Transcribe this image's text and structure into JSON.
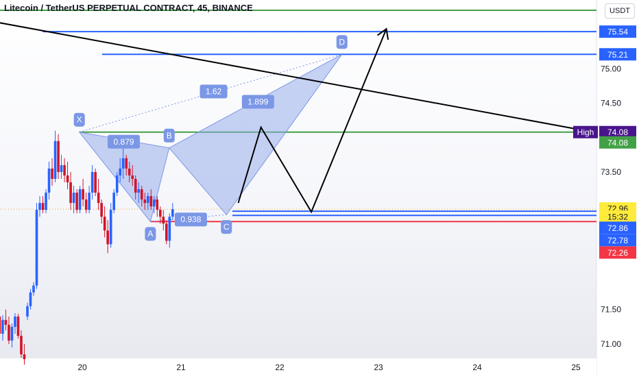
{
  "header": {
    "title": "Litecoin / TetherUS PERPETUAL CONTRACT, 45, BINANCE",
    "currency_button": "USDT"
  },
  "colors": {
    "pattern_fill": "#8fa8ea",
    "pattern_point": "#7b97e6",
    "blue_line": "#2962ff",
    "green_line": "#43a047",
    "red_line": "#f23645",
    "candle_up": "#2962ff",
    "candle_down": "#d1142a",
    "high_badge": "#4a148c",
    "price_badge": "#ffeb3b"
  },
  "chart_data": {
    "type": "candlestick",
    "symbol": "Litecoin / TetherUS PERPETUAL CONTRACT",
    "interval": "45",
    "exchange": "BINANCE",
    "x_ticks": [
      "20",
      "21",
      "22",
      "23",
      "24",
      "25"
    ],
    "y_ticks": [
      "75.00",
      "74.50",
      "73.50",
      "71.50",
      "71.00"
    ],
    "ylim": [
      70.8,
      75.9
    ],
    "candle_x_start": 19.1,
    "candle_x_step": 0.0313,
    "candles": [
      [
        71.35,
        71.45,
        71.25,
        71.3
      ],
      [
        71.3,
        71.48,
        71.22,
        71.4
      ],
      [
        71.4,
        71.46,
        71.1,
        71.15
      ],
      [
        71.15,
        71.42,
        71.05,
        71.35
      ],
      [
        71.35,
        71.5,
        71.2,
        71.28
      ],
      [
        71.28,
        71.4,
        71.0,
        71.05
      ],
      [
        71.05,
        71.3,
        70.95,
        71.25
      ],
      [
        71.25,
        71.45,
        71.15,
        71.4
      ],
      [
        71.4,
        71.44,
        71.08,
        71.12
      ],
      [
        71.12,
        71.2,
        70.8,
        70.85
      ],
      [
        70.85,
        71.0,
        70.7,
        70.78
      ],
      [
        71.4,
        71.6,
        71.35,
        71.55
      ],
      [
        71.55,
        71.8,
        71.5,
        71.75
      ],
      [
        71.75,
        71.9,
        71.7,
        71.85
      ],
      [
        71.85,
        73.05,
        71.8,
        72.95
      ],
      [
        72.95,
        73.15,
        72.85,
        73.05
      ],
      [
        73.05,
        73.15,
        72.9,
        72.95
      ],
      [
        72.95,
        73.25,
        72.9,
        73.2
      ],
      [
        73.2,
        73.65,
        73.1,
        73.55
      ],
      [
        73.55,
        73.7,
        73.3,
        73.4
      ],
      [
        73.4,
        74.1,
        73.35,
        73.95
      ],
      [
        73.95,
        74.05,
        73.4,
        73.5
      ],
      [
        73.5,
        73.75,
        73.4,
        73.6
      ],
      [
        73.6,
        73.7,
        73.35,
        73.45
      ],
      [
        73.45,
        73.65,
        73.25,
        73.35
      ],
      [
        73.35,
        73.5,
        72.95,
        73.05
      ],
      [
        73.05,
        73.3,
        72.9,
        73.2
      ],
      [
        73.2,
        73.25,
        72.9,
        72.95
      ],
      [
        72.95,
        73.3,
        72.9,
        73.25
      ],
      [
        73.25,
        73.4,
        73.0,
        73.1
      ],
      [
        73.1,
        73.2,
        72.9,
        72.95
      ],
      [
        72.95,
        73.3,
        72.9,
        73.2
      ],
      [
        73.2,
        73.6,
        73.1,
        73.5
      ],
      [
        73.5,
        73.55,
        73.15,
        73.2
      ],
      [
        73.2,
        73.4,
        72.95,
        73.05
      ],
      [
        73.05,
        73.1,
        72.75,
        72.85
      ],
      [
        72.85,
        73.0,
        72.55,
        72.65
      ],
      [
        72.65,
        72.8,
        72.32,
        72.45
      ],
      [
        72.45,
        73.05,
        72.4,
        72.95
      ],
      [
        72.95,
        73.25,
        72.9,
        73.2
      ],
      [
        73.2,
        73.5,
        73.15,
        73.45
      ],
      [
        73.45,
        73.7,
        73.35,
        73.55
      ],
      [
        73.55,
        73.85,
        73.4,
        73.7
      ],
      [
        73.7,
        73.75,
        73.45,
        73.55
      ],
      [
        73.55,
        73.65,
        73.35,
        73.45
      ],
      [
        73.45,
        73.6,
        73.3,
        73.4
      ],
      [
        73.4,
        73.45,
        73.1,
        73.2
      ],
      [
        73.2,
        73.35,
        73.05,
        73.25
      ],
      [
        73.25,
        73.3,
        73.0,
        73.1
      ],
      [
        73.1,
        73.2,
        72.95,
        73.05
      ],
      [
        73.05,
        73.2,
        72.95,
        73.15
      ],
      [
        73.15,
        73.25,
        72.95,
        73.0
      ],
      [
        73.0,
        73.15,
        72.9,
        73.1
      ],
      [
        73.1,
        73.15,
        72.85,
        72.95
      ],
      [
        72.95,
        73.0,
        72.75,
        72.85
      ],
      [
        72.85,
        72.95,
        72.65,
        72.75
      ],
      [
        72.75,
        72.8,
        72.45,
        72.5
      ],
      [
        72.5,
        72.9,
        72.4,
        72.85
      ],
      [
        72.85,
        73.05,
        72.8,
        72.96
      ]
    ],
    "harmonic_pattern": {
      "type": "butterfly",
      "points": [
        {
          "label": "X",
          "x": 19.97,
          "y": 74.08
        },
        {
          "label": "A",
          "x": 20.69,
          "y": 72.78
        },
        {
          "label": "B",
          "x": 20.88,
          "y": 73.85
        },
        {
          "label": "C",
          "x": 21.46,
          "y": 72.88
        },
        {
          "label": "D",
          "x": 22.63,
          "y": 75.21
        }
      ],
      "ratios": [
        {
          "label": "0.879",
          "x": 20.42,
          "y": 73.94
        },
        {
          "label": "0.938",
          "x": 21.1,
          "y": 72.81
        },
        {
          "label": "1.62",
          "x": 21.33,
          "y": 74.67
        },
        {
          "label": "1.899",
          "x": 21.78,
          "y": 74.52
        }
      ]
    },
    "projection_path": [
      {
        "x": 21.58,
        "y": 73.05
      },
      {
        "x": 21.81,
        "y": 74.15
      },
      {
        "x": 22.32,
        "y": 72.92
      },
      {
        "x": 23.08,
        "y": 75.58
      }
    ],
    "trendline": [
      {
        "x": 19.12,
        "y": 75.68
      },
      {
        "x": 25.1,
        "y": 74.1
      }
    ],
    "horizontal_lines": [
      {
        "name": "blue-line-75.54",
        "y": 75.54,
        "x_start": 19.6,
        "x_end": 25.3,
        "color": "#2962ff"
      },
      {
        "name": "blue-line-75.21",
        "y": 75.21,
        "x_start": 20.2,
        "x_end": 25.3,
        "color": "#2962ff"
      },
      {
        "name": "green-line-74.08",
        "y": 74.08,
        "x_start": 19.97,
        "x_end": 25.3,
        "color": "#43a047"
      },
      {
        "name": "blue-line-72.93",
        "y": 72.93,
        "x_start": 21.52,
        "x_end": 25.3,
        "color": "#2962ff"
      },
      {
        "name": "blue-line-72.87",
        "y": 72.87,
        "x_start": 21.52,
        "x_end": 25.3,
        "color": "#2962ff"
      },
      {
        "name": "red-line-72.78",
        "y": 72.78,
        "x_start": 20.69,
        "x_end": 25.3,
        "color": "#f23645"
      },
      {
        "name": "green-line-top",
        "y": 75.85,
        "x_start": 19.1,
        "x_end": 25.3,
        "color": "#43a047"
      }
    ],
    "price_labels": [
      {
        "text": "75.54",
        "y": 75.54,
        "bg": "#2962ff",
        "fg": "#ffffff"
      },
      {
        "text": "75.21",
        "y": 75.21,
        "bg": "#2962ff",
        "fg": "#ffffff"
      },
      {
        "text": "74.08",
        "y": 74.08,
        "bg": "#4a148c",
        "fg": "#ffffff",
        "prefix": "High"
      },
      {
        "text": "74.08",
        "y": 73.93,
        "bg": "#43a047",
        "fg": "#ffffff"
      },
      {
        "text": "72.96",
        "y": 72.97,
        "bg": "#ffeb3b",
        "fg": "#131722"
      },
      {
        "text": "15:32",
        "y": 72.85,
        "bg": "#ffeb3b",
        "fg": "#131722"
      },
      {
        "text": "72.86",
        "y": 72.69,
        "bg": "#2962ff",
        "fg": "#ffffff"
      },
      {
        "text": "72.78",
        "y": 72.51,
        "bg": "#2962ff",
        "fg": "#ffffff"
      },
      {
        "text": "72.26",
        "y": 72.33,
        "bg": "#f23645",
        "fg": "#ffffff"
      }
    ],
    "dotted_price_line": 72.96
  }
}
